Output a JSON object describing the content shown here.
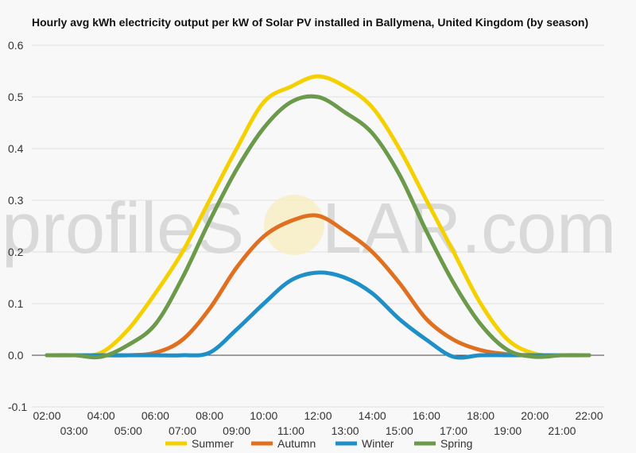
{
  "chart_data": {
    "type": "line",
    "title": "Hourly avg kWh electricity output per kW of Solar PV installed in Ballymena, United Kingdom (by season)",
    "watermark": {
      "left": "profileS",
      "right": "LAR.com"
    },
    "xlabel": "",
    "ylabel": "",
    "ylim": [
      -0.1,
      0.6
    ],
    "yticks": [
      "0.6",
      "0.5",
      "0.4",
      "0.3",
      "0.2",
      "0.1",
      "0.0",
      "-0.1"
    ],
    "x": [
      "02:00",
      "03:00",
      "04:00",
      "05:00",
      "06:00",
      "07:00",
      "08:00",
      "09:00",
      "10:00",
      "11:00",
      "12:00",
      "13:00",
      "14:00",
      "15:00",
      "16:00",
      "17:00",
      "18:00",
      "19:00",
      "20:00",
      "21:00",
      "22:00"
    ],
    "grid": true,
    "legend_position": "bottom",
    "series": [
      {
        "name": "Summer",
        "color": "#f5d000",
        "values": [
          0.0,
          0.0,
          0.005,
          0.05,
          0.12,
          0.2,
          0.3,
          0.4,
          0.49,
          0.52,
          0.54,
          0.52,
          0.48,
          0.4,
          0.3,
          0.2,
          0.1,
          0.03,
          0.003,
          0.0,
          0.0
        ]
      },
      {
        "name": "Autumn",
        "color": "#e07020",
        "values": [
          0.0,
          0.0,
          0.0,
          0.0,
          0.005,
          0.03,
          0.09,
          0.17,
          0.23,
          0.26,
          0.27,
          0.24,
          0.2,
          0.14,
          0.07,
          0.03,
          0.01,
          0.002,
          0.0,
          0.0,
          0.0
        ]
      },
      {
        "name": "Winter",
        "color": "#1f8fc8",
        "values": [
          0.0,
          0.0,
          0.0,
          0.0,
          0.0,
          0.0,
          0.005,
          0.05,
          0.1,
          0.145,
          0.16,
          0.15,
          0.12,
          0.07,
          0.03,
          -0.003,
          0.0,
          0.0,
          0.0,
          0.0,
          0.0
        ]
      },
      {
        "name": "Spring",
        "color": "#6a9a4a",
        "values": [
          0.0,
          0.0,
          -0.003,
          0.02,
          0.06,
          0.15,
          0.26,
          0.36,
          0.44,
          0.49,
          0.5,
          0.47,
          0.43,
          0.35,
          0.24,
          0.14,
          0.06,
          0.01,
          -0.003,
          0.0,
          0.0
        ]
      }
    ]
  }
}
